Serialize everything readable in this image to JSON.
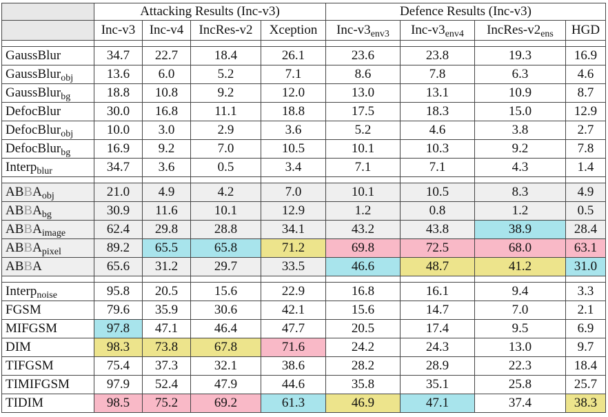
{
  "header": {
    "group_attack": "Attacking Results (Inc-v3)",
    "group_defence": "Defence Results (Inc-v3)",
    "columns": [
      {
        "base": "Inc-v3",
        "sub": ""
      },
      {
        "base": "Inc-v4",
        "sub": ""
      },
      {
        "base": "IncRes-v2",
        "sub": ""
      },
      {
        "base": "Xception",
        "sub": ""
      },
      {
        "base": "Inc-v3",
        "sub": "env3"
      },
      {
        "base": "Inc-v3",
        "sub": "env4"
      },
      {
        "base": "IncRes-v2",
        "sub": "ens"
      },
      {
        "base": "HGD",
        "sub": ""
      }
    ]
  },
  "colors": {
    "cyan": "#a8e4ec",
    "pink": "#f9b9c7",
    "yellow": "#ede48c",
    "section_bg": "#efefef"
  },
  "sections": [
    {
      "rows": [
        {
          "name": "GaussBlur",
          "sub": "",
          "values": [
            "34.7",
            "22.7",
            "18.4",
            "26.1",
            "23.6",
            "23.8",
            "19.3",
            "16.9"
          ],
          "hl": [
            "",
            "",
            "",
            "",
            "",
            "",
            "",
            ""
          ]
        },
        {
          "name": "GaussBlur",
          "sub": "obj",
          "values": [
            "13.6",
            "6.0",
            "5.2",
            "7.1",
            "8.6",
            "7.8",
            "6.3",
            "4.6"
          ],
          "hl": [
            "",
            "",
            "",
            "",
            "",
            "",
            "",
            ""
          ]
        },
        {
          "name": "GaussBlur",
          "sub": "bg",
          "values": [
            "18.8",
            "10.8",
            "9.2",
            "12.0",
            "13.0",
            "13.1",
            "10.9",
            "8.7"
          ],
          "hl": [
            "",
            "",
            "",
            "",
            "",
            "",
            "",
            ""
          ]
        },
        {
          "name": "DefocBlur",
          "sub": "",
          "values": [
            "30.0",
            "16.8",
            "11.1",
            "18.8",
            "17.5",
            "18.3",
            "15.0",
            "12.9"
          ],
          "hl": [
            "",
            "",
            "",
            "",
            "",
            "",
            "",
            ""
          ]
        },
        {
          "name": "DefocBlur",
          "sub": "obj",
          "values": [
            "10.0",
            "3.0",
            "2.9",
            "3.6",
            "5.2",
            "4.6",
            "3.8",
            "2.7"
          ],
          "hl": [
            "",
            "",
            "",
            "",
            "",
            "",
            "",
            ""
          ]
        },
        {
          "name": "DefocBlur",
          "sub": "bg",
          "values": [
            "16.9",
            "9.2",
            "7.0",
            "10.5",
            "10.1",
            "10.3",
            "9.2",
            "7.8"
          ],
          "hl": [
            "",
            "",
            "",
            "",
            "",
            "",
            "",
            ""
          ]
        },
        {
          "name": "Interp",
          "sub": "blur",
          "values": [
            "34.7",
            "3.6",
            "0.5",
            "3.4",
            "7.1",
            "7.1",
            "4.3",
            "1.4"
          ],
          "hl": [
            "",
            "",
            "",
            "",
            "",
            "",
            "",
            ""
          ]
        }
      ]
    },
    {
      "shaded": true,
      "rows": [
        {
          "name": "ABBA",
          "sub": "obj",
          "values": [
            "21.0",
            "4.9",
            "4.2",
            "7.0",
            "10.1",
            "10.5",
            "8.3",
            "4.9"
          ],
          "hl": [
            "",
            "",
            "",
            "",
            "",
            "",
            "",
            ""
          ]
        },
        {
          "name": "ABBA",
          "sub": "bg",
          "values": [
            "30.9",
            "11.6",
            "10.1",
            "12.9",
            "1.2",
            "0.8",
            "1.2",
            "0.5"
          ],
          "hl": [
            "",
            "",
            "",
            "",
            "",
            "",
            "",
            ""
          ]
        },
        {
          "name": "ABBA",
          "sub": "image",
          "values": [
            "62.4",
            "29.8",
            "28.8",
            "34.1",
            "43.2",
            "43.8",
            "38.9",
            "28.4"
          ],
          "hl": [
            "",
            "",
            "",
            "",
            "",
            "",
            "cyan",
            ""
          ]
        },
        {
          "name": "ABBA",
          "sub": "pixel",
          "values": [
            "89.2",
            "65.5",
            "65.8",
            "71.2",
            "69.8",
            "72.5",
            "68.0",
            "63.1"
          ],
          "hl": [
            "",
            "cyan",
            "cyan",
            "yellow",
            "pink",
            "pink",
            "pink",
            "pink"
          ]
        },
        {
          "name": "ABBA",
          "sub": "",
          "values": [
            "65.6",
            "31.2",
            "29.7",
            "33.5",
            "46.6",
            "48.7",
            "41.2",
            "31.0"
          ],
          "hl": [
            "",
            "",
            "",
            "",
            "cyan",
            "yellow",
            "yellow",
            "cyan"
          ]
        }
      ]
    },
    {
      "rows": [
        {
          "name": "Interp",
          "sub": "noise",
          "values": [
            "95.8",
            "20.5",
            "15.6",
            "22.9",
            "16.8",
            "16.1",
            "9.4",
            "3.3"
          ],
          "hl": [
            "",
            "",
            "",
            "",
            "",
            "",
            "",
            ""
          ]
        },
        {
          "name": "FGSM",
          "sub": "",
          "values": [
            "79.6",
            "35.9",
            "30.6",
            "42.1",
            "15.6",
            "14.7",
            "7.0",
            "2.1"
          ],
          "hl": [
            "",
            "",
            "",
            "",
            "",
            "",
            "",
            ""
          ]
        },
        {
          "name": "MIFGSM",
          "sub": "",
          "values": [
            "97.8",
            "47.1",
            "46.4",
            "47.7",
            "20.5",
            "17.4",
            "9.5",
            "6.9"
          ],
          "hl": [
            "cyan",
            "",
            "",
            "",
            "",
            "",
            "",
            ""
          ]
        },
        {
          "name": "DIM",
          "sub": "",
          "values": [
            "98.3",
            "73.8",
            "67.8",
            "71.6",
            "24.2",
            "24.3",
            "13.0",
            "9.7"
          ],
          "hl": [
            "yellow",
            "yellow",
            "yellow",
            "pink",
            "",
            "",
            "",
            ""
          ]
        },
        {
          "name": "TIFGSM",
          "sub": "",
          "values": [
            "75.4",
            "37.3",
            "32.1",
            "38.6",
            "28.2",
            "28.9",
            "22.3",
            "18.4"
          ],
          "hl": [
            "",
            "",
            "",
            "",
            "",
            "",
            "",
            ""
          ]
        },
        {
          "name": "TIMIFGSM",
          "sub": "",
          "values": [
            "97.9",
            "52.4",
            "47.9",
            "44.6",
            "35.8",
            "35.1",
            "25.8",
            "25.7"
          ],
          "hl": [
            "",
            "",
            "",
            "",
            "",
            "",
            "",
            ""
          ]
        },
        {
          "name": "TIDIM",
          "sub": "",
          "values": [
            "98.5",
            "75.2",
            "69.2",
            "61.3",
            "46.9",
            "47.1",
            "37.4",
            "38.3"
          ],
          "hl": [
            "pink",
            "pink",
            "pink",
            "cyan",
            "yellow",
            "cyan",
            "",
            "yellow"
          ]
        }
      ]
    }
  ]
}
